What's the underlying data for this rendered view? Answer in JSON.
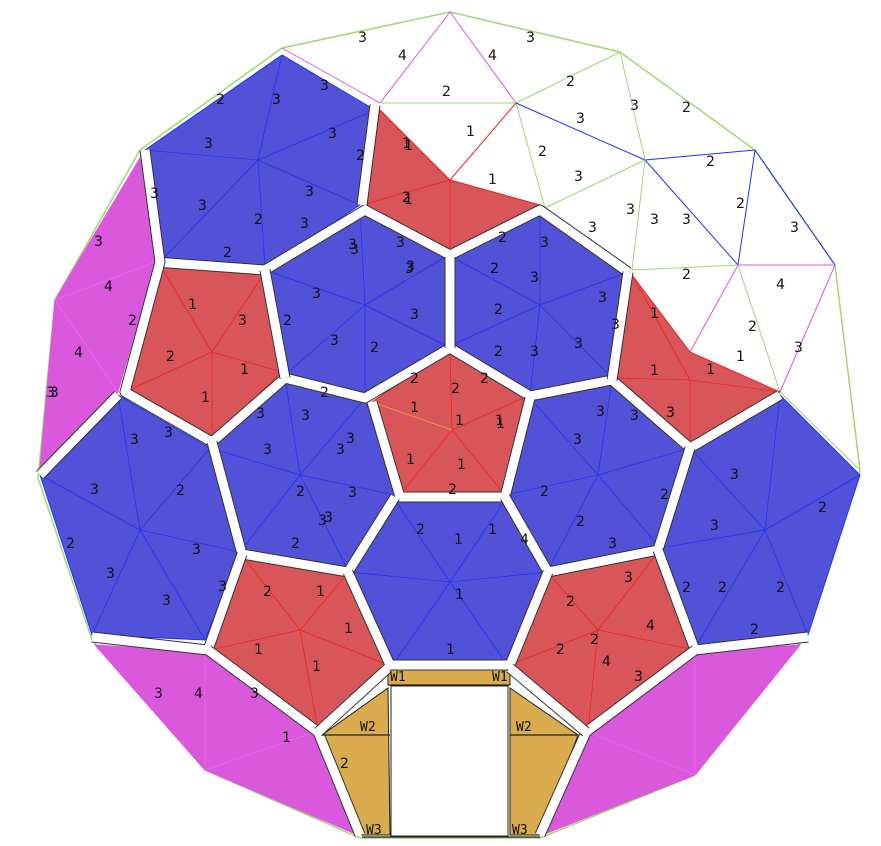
{
  "colors": {
    "blue": "#5252d8",
    "red": "#d8565a",
    "magenta": "#d958dc",
    "gold": "#d9ab4c",
    "white": "#ffffff",
    "line_blue": "#2233ee",
    "line_red": "#ee2222",
    "line_green": "#9fd86f",
    "line_pink": "#dd55dd",
    "line_orange": "#f0a030",
    "outline": "#222222"
  },
  "door_labels": {
    "w1_left": "W1",
    "w1_right": "W1",
    "w2_left": "W2",
    "w2_right": "W2",
    "w3_left": "W3",
    "w3_right": "W3"
  },
  "strut_labels": [
    "3",
    "4",
    "4",
    "3",
    "2",
    "2",
    "1",
    "2",
    "1",
    "1",
    "1",
    "3",
    "2",
    "3",
    "2",
    "3",
    "3",
    "2",
    "3",
    "3",
    "3",
    "2",
    "3",
    "2",
    "3",
    "3",
    "3",
    "2",
    "1",
    "2",
    "3",
    "4",
    "4",
    "3",
    "2",
    "1",
    "3",
    "2",
    "1",
    "1",
    "3",
    "1",
    "1",
    "2",
    "4",
    "3",
    "1",
    "2",
    "1",
    "1",
    "1",
    "2",
    "2",
    "1",
    "1",
    "1",
    "1",
    "2",
    "3",
    "3",
    "3",
    "2",
    "3",
    "3",
    "3",
    "3",
    "2",
    "3",
    "3",
    "3",
    "2",
    "3",
    "3",
    "2",
    "3",
    "2",
    "2",
    "3",
    "3",
    "2",
    "3",
    "3",
    "2",
    "3",
    "3",
    "3",
    "2",
    "3",
    "3",
    "3",
    "3",
    "3",
    "2",
    "3",
    "3",
    "3",
    "3",
    "3",
    "2",
    "3",
    "3",
    "2",
    "3",
    "3",
    "2",
    "3",
    "3",
    "3",
    "3",
    "2",
    "2",
    "2",
    "3",
    "3",
    "2",
    "3",
    "2",
    "1",
    "1",
    "1",
    "1",
    "1",
    "2",
    "2",
    "1",
    "1",
    "1",
    "1",
    "2",
    "3",
    "4",
    "2",
    "4",
    "3",
    "2",
    "2",
    "2",
    "2",
    "2",
    "4",
    "3",
    "4",
    "3"
  ]
}
